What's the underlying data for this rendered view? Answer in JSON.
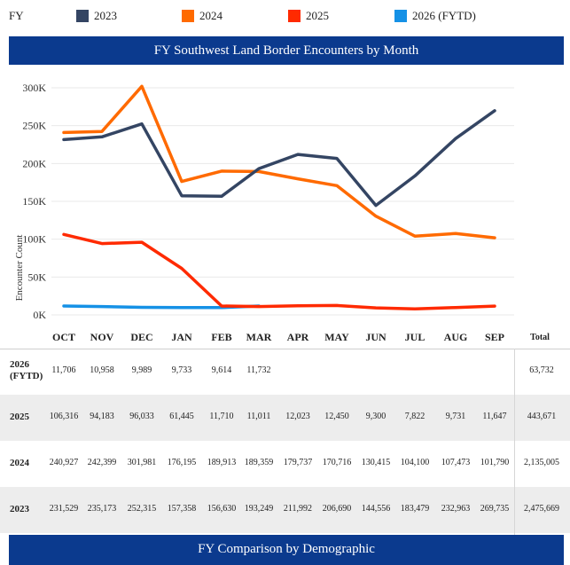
{
  "legend": {
    "fy_label": "FY",
    "items": [
      {
        "label": "2023",
        "color": "#344563"
      },
      {
        "label": "2024",
        "color": "#ff6a00"
      },
      {
        "label": "2025",
        "color": "#ff2a00"
      },
      {
        "label": "2026 (FYTD)",
        "color": "#1591e6"
      }
    ]
  },
  "chart_title": "FY Southwest Land Border Encounters by Month",
  "chart_data": {
    "type": "line",
    "title": "FY Southwest Land Border Encounters by Month",
    "xlabel": "",
    "ylabel": "Encounter Count",
    "ylim": [
      0,
      300000
    ],
    "yticks": [
      0,
      50000,
      100000,
      150000,
      200000,
      250000,
      300000
    ],
    "ytick_labels": [
      "0K",
      "50K",
      "100K",
      "150K",
      "200K",
      "250K",
      "300K"
    ],
    "categories": [
      "OCT",
      "NOV",
      "DEC",
      "JAN",
      "FEB",
      "MAR",
      "APR",
      "MAY",
      "JUN",
      "JUL",
      "AUG",
      "SEP"
    ],
    "series": [
      {
        "name": "2023",
        "color": "#344563",
        "values": [
          231529,
          235173,
          252315,
          157358,
          156630,
          193249,
          211992,
          206690,
          144556,
          183479,
          232963,
          269735
        ]
      },
      {
        "name": "2024",
        "color": "#ff6a00",
        "values": [
          240927,
          242399,
          301981,
          176195,
          189913,
          189359,
          179737,
          170716,
          130415,
          104100,
          107473,
          101790
        ]
      },
      {
        "name": "2025",
        "color": "#ff2a00",
        "values": [
          106316,
          94183,
          96033,
          61445,
          11710,
          11011,
          12023,
          12450,
          9300,
          7822,
          9731,
          11647
        ]
      },
      {
        "name": "2026 (FYTD)",
        "color": "#1591e6",
        "values": [
          11706,
          10958,
          9989,
          9733,
          9614,
          11732,
          null,
          null,
          null,
          null,
          null,
          null
        ]
      }
    ],
    "grid": true
  },
  "table": {
    "total_header": "Total",
    "rows": [
      {
        "label": "2026\n(FYTD)",
        "cells": [
          "11,706",
          "10,958",
          "9,989",
          "9,733",
          "9,614",
          "11,732",
          "",
          "",
          "",
          "",
          "",
          ""
        ],
        "total": "63,732"
      },
      {
        "label": "2025",
        "cells": [
          "106,316",
          "94,183",
          "96,033",
          "61,445",
          "11,710",
          "11,011",
          "12,023",
          "12,450",
          "9,300",
          "7,822",
          "9,731",
          "11,647"
        ],
        "total": "443,671"
      },
      {
        "label": "2024",
        "cells": [
          "240,927",
          "242,399",
          "301,981",
          "176,195",
          "189,913",
          "189,359",
          "179,737",
          "170,716",
          "130,415",
          "104,100",
          "107,473",
          "101,790"
        ],
        "total": "2,135,005"
      },
      {
        "label": "2023",
        "cells": [
          "231,529",
          "235,173",
          "252,315",
          "157,358",
          "156,630",
          "193,249",
          "211,992",
          "206,690",
          "144,556",
          "183,479",
          "232,963",
          "269,735"
        ],
        "total": "2,475,669"
      }
    ]
  },
  "bottom_banner": "FY Comparison by Demographic"
}
